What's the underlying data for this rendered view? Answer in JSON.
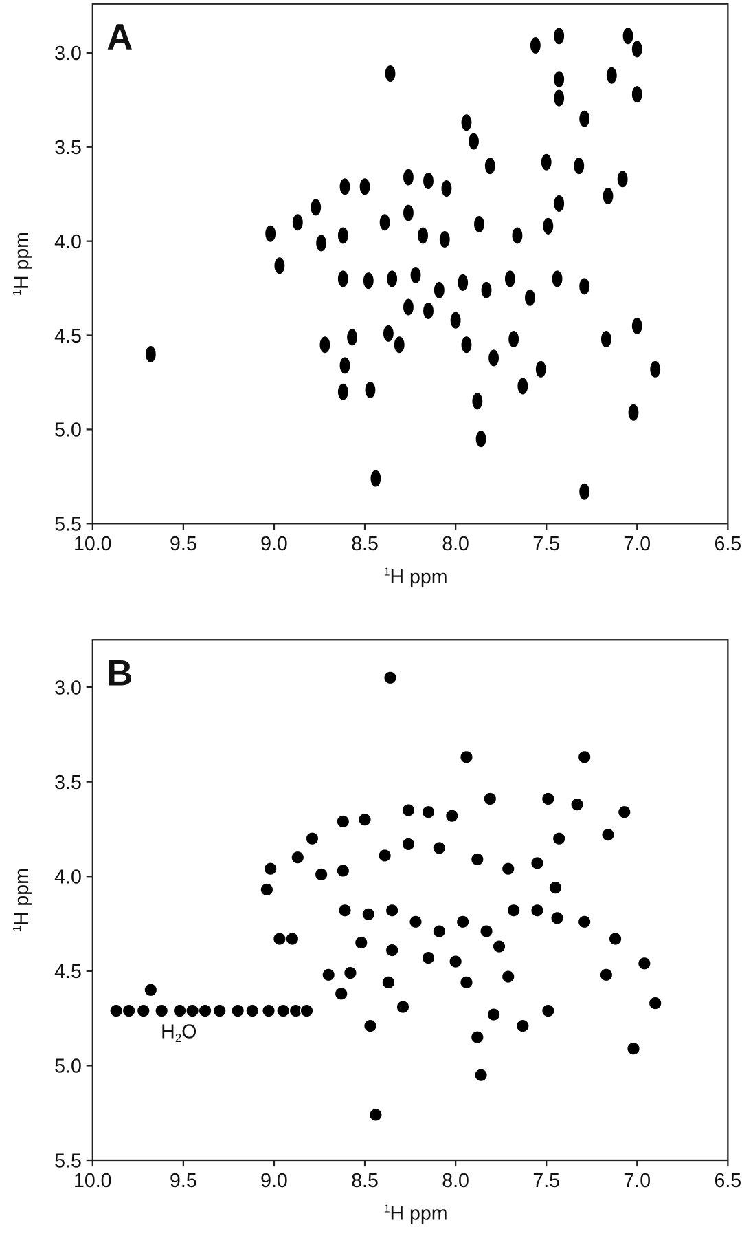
{
  "chart_data": [
    {
      "type": "scatter",
      "title": "A",
      "xlabel_sup": "1",
      "xlabel": "H ppm",
      "ylabel_sup": "1",
      "ylabel": "H ppm",
      "color": "#000000",
      "xlim": [
        10.0,
        6.5
      ],
      "ylim": [
        5.5,
        2.74
      ],
      "xticks": [
        {
          "value": 10.0,
          "label": "10.0"
        },
        9.5,
        {
          "value": 9.0,
          "label": "9.0"
        },
        8.5,
        {
          "value": 8.0,
          "label": "8.0"
        },
        7.5,
        {
          "value": 7.0,
          "label": "7.0"
        },
        6.5
      ],
      "yticks": [
        {
          "value": 3.0,
          "label": "3.0"
        },
        3.5,
        {
          "value": 4.0,
          "label": "4.0"
        },
        4.5,
        {
          "value": 5.0,
          "label": "5.0"
        },
        5.5
      ],
      "x": [
        9.68,
        8.36,
        7.56,
        7.43,
        7.43,
        7.43,
        7.14,
        7.05,
        7.0,
        7.0,
        7.29,
        7.94,
        7.9,
        7.5,
        7.32,
        7.81,
        7.08,
        7.16,
        8.5,
        8.61,
        8.26,
        8.15,
        8.05,
        8.77,
        8.87,
        9.02,
        8.97,
        8.74,
        8.62,
        8.39,
        8.26,
        8.18,
        8.06,
        7.87,
        7.66,
        7.49,
        7.43,
        8.62,
        8.48,
        8.35,
        8.22,
        8.09,
        7.96,
        7.83,
        7.7,
        7.59,
        7.44,
        7.29,
        8.26,
        8.15,
        8.0,
        8.37,
        8.31,
        8.72,
        8.57,
        7.94,
        7.68,
        7.79,
        7.17,
        7.0,
        7.53,
        7.63,
        8.47,
        7.88,
        7.02,
        6.9,
        8.44,
        7.86,
        7.29,
        8.61,
        8.62
      ],
      "values": [
        4.6,
        3.11,
        2.96,
        2.91,
        3.14,
        3.24,
        3.12,
        2.91,
        2.98,
        3.22,
        3.35,
        3.37,
        3.47,
        3.58,
        3.6,
        3.6,
        3.67,
        3.76,
        3.71,
        3.71,
        3.66,
        3.68,
        3.72,
        3.82,
        3.9,
        3.96,
        4.13,
        4.01,
        3.97,
        3.9,
        3.85,
        3.97,
        3.99,
        3.91,
        3.97,
        3.92,
        3.8,
        4.2,
        4.21,
        4.2,
        4.18,
        4.26,
        4.22,
        4.26,
        4.2,
        4.3,
        4.2,
        4.24,
        4.35,
        4.37,
        4.42,
        4.49,
        4.55,
        4.55,
        4.51,
        4.55,
        4.52,
        4.62,
        4.52,
        4.45,
        4.68,
        4.77,
        4.79,
        4.85,
        4.91,
        4.68,
        5.26,
        5.05,
        5.33,
        4.66,
        4.8
      ]
    },
    {
      "type": "scatter",
      "title": "B",
      "xlabel_sup": "1",
      "xlabel": "H ppm",
      "ylabel_sup": "1",
      "ylabel": "H ppm",
      "color": "#000000",
      "annotation": [
        "H",
        "2",
        "O"
      ],
      "xlim": [
        10.0,
        6.5
      ],
      "ylim": [
        5.5,
        2.75
      ],
      "xticks": [
        {
          "value": 10.0,
          "label": "10.0"
        },
        9.5,
        {
          "value": 9.0,
          "label": "9.0"
        },
        8.5,
        {
          "value": 8.0,
          "label": "8.0"
        },
        7.5,
        {
          "value": 7.0,
          "label": "7.0"
        },
        6.5
      ],
      "yticks": [
        {
          "value": 3.0,
          "label": "3.0"
        },
        3.5,
        {
          "value": 4.0,
          "label": "4.0"
        },
        4.5,
        {
          "value": 5.0,
          "label": "5.0"
        },
        5.5
      ],
      "x": [
        8.36,
        7.94,
        7.29,
        7.49,
        7.81,
        7.33,
        7.07,
        7.16,
        7.43,
        8.26,
        8.15,
        8.02,
        8.5,
        8.62,
        8.79,
        8.87,
        9.02,
        8.74,
        8.62,
        8.39,
        8.26,
        8.09,
        7.88,
        7.71,
        7.55,
        7.45,
        9.04,
        8.97,
        8.9,
        8.61,
        8.48,
        8.35,
        8.22,
        8.09,
        7.96,
        7.83,
        7.68,
        7.55,
        7.44,
        7.29,
        7.12,
        6.96,
        7.17,
        8.52,
        8.35,
        8.15,
        8.0,
        7.76,
        8.37,
        8.7,
        8.58,
        7.94,
        7.71,
        8.63,
        9.68,
        8.29,
        7.49,
        7.63,
        8.47,
        7.88,
        7.02,
        6.9,
        7.86,
        8.44,
        7.79,
        9.87,
        9.8,
        9.72,
        9.62,
        9.52,
        9.45,
        9.38,
        9.3,
        9.2,
        9.12,
        9.03,
        8.95,
        8.88,
        8.82
      ],
      "values": [
        2.95,
        3.37,
        3.37,
        3.59,
        3.59,
        3.62,
        3.66,
        3.78,
        3.8,
        3.65,
        3.66,
        3.68,
        3.7,
        3.71,
        3.8,
        3.9,
        3.96,
        3.99,
        3.97,
        3.89,
        3.83,
        3.85,
        3.91,
        3.96,
        3.93,
        4.06,
        4.07,
        4.33,
        4.33,
        4.18,
        4.2,
        4.18,
        4.24,
        4.29,
        4.24,
        4.29,
        4.18,
        4.18,
        4.22,
        4.24,
        4.33,
        4.46,
        4.52,
        4.35,
        4.39,
        4.43,
        4.45,
        4.37,
        4.56,
        4.52,
        4.51,
        4.56,
        4.53,
        4.62,
        4.6,
        4.69,
        4.71,
        4.79,
        4.79,
        4.85,
        4.91,
        4.67,
        5.05,
        5.26,
        4.73,
        4.71,
        4.71,
        4.71,
        4.71,
        4.71,
        4.71,
        4.71,
        4.71,
        4.71,
        4.71,
        4.71,
        4.71,
        4.71,
        4.71
      ]
    }
  ]
}
